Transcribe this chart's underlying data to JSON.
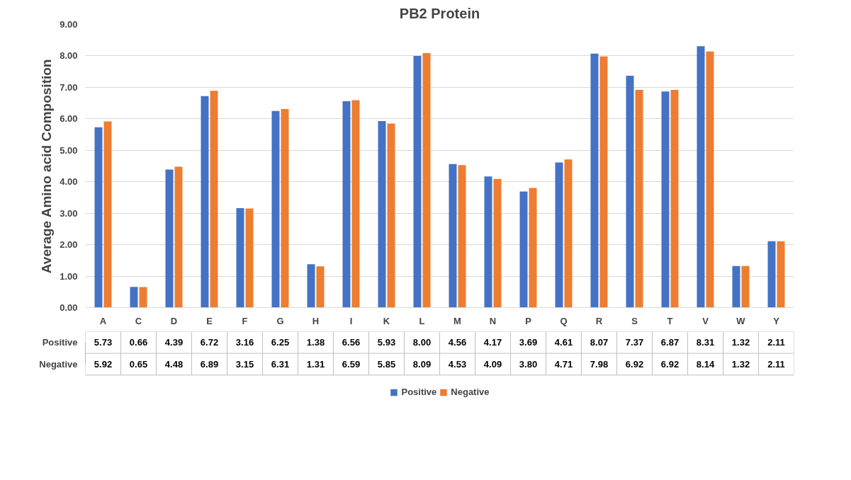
{
  "chart_data": {
    "type": "bar",
    "title": "PB2 Protein",
    "ylabel": "Average Amino acid Composition",
    "categories": [
      "A",
      "C",
      "D",
      "E",
      "F",
      "G",
      "H",
      "I",
      "K",
      "L",
      "M",
      "N",
      "P",
      "Q",
      "R",
      "S",
      "T",
      "V",
      "W",
      "Y"
    ],
    "series": [
      {
        "name": "Positive",
        "color": "#4472c4",
        "values": [
          5.73,
          0.66,
          4.39,
          6.72,
          3.16,
          6.25,
          1.38,
          6.56,
          5.93,
          8.0,
          4.56,
          4.17,
          3.69,
          4.61,
          8.07,
          7.37,
          6.87,
          8.31,
          1.32,
          2.11
        ],
        "value_labels": [
          "5.73",
          "0.66",
          "4.39",
          "6.72",
          "3.16",
          "6.25",
          "1.38",
          "6.56",
          "5.93",
          "8.00",
          "4.56",
          "4.17",
          "3.69",
          "4.61",
          "8.07",
          "7.37",
          "6.87",
          "8.31",
          "1.32",
          "2.11"
        ]
      },
      {
        "name": "Negative",
        "color": "#ed7d31",
        "values": [
          5.92,
          0.65,
          4.48,
          6.89,
          3.15,
          6.31,
          1.31,
          6.59,
          5.85,
          8.09,
          4.53,
          4.09,
          3.8,
          4.71,
          7.98,
          6.92,
          6.92,
          8.14,
          1.32,
          2.11
        ],
        "value_labels": [
          "5.92",
          "0.65",
          "4.48",
          "6.89",
          "3.15",
          "6.31",
          "1.31",
          "6.59",
          "5.85",
          "8.09",
          "4.53",
          "4.09",
          "3.80",
          "4.71",
          "7.98",
          "6.92",
          "6.92",
          "8.14",
          "1.32",
          "2.11"
        ]
      }
    ],
    "ylim": [
      0,
      9
    ],
    "yticks": [
      {
        "value": 0,
        "label": "0.00"
      },
      {
        "value": 1,
        "label": "1.00"
      },
      {
        "value": 2,
        "label": "2.00"
      },
      {
        "value": 3,
        "label": "3.00"
      },
      {
        "value": 4,
        "label": "4.00"
      },
      {
        "value": 5,
        "label": "5.00"
      },
      {
        "value": 6,
        "label": "6.00"
      },
      {
        "value": 7,
        "label": "7.00"
      },
      {
        "value": 8,
        "label": "8.00"
      },
      {
        "value": 9,
        "label": "9.00"
      }
    ],
    "grid": "y",
    "legend": "bottom"
  }
}
